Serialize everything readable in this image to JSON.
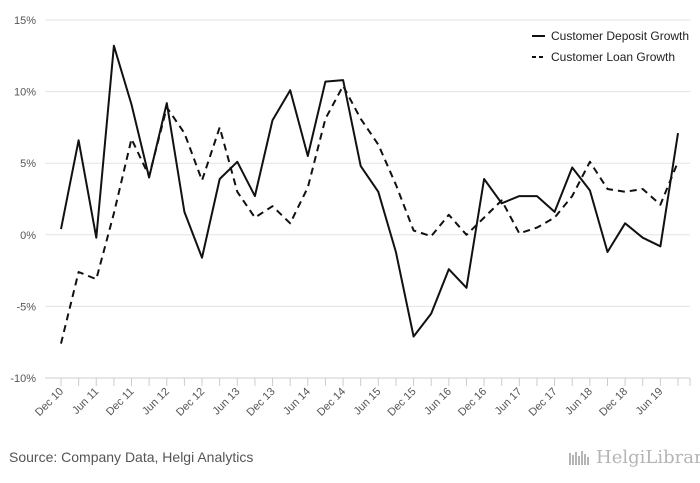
{
  "source": "Source: Company Data, Helgi Analytics",
  "logo_text": "HelgiLibrary",
  "chart_data": {
    "type": "line",
    "x": [
      "Dec 10",
      "Mar 11",
      "Jun 11",
      "Sep 11",
      "Dec 11",
      "Mar 12",
      "Jun 12",
      "Sep 12",
      "Dec 12",
      "Mar 13",
      "Jun 13",
      "Sep 13",
      "Dec 13",
      "Mar 14",
      "Jun 14",
      "Sep 14",
      "Dec 14",
      "Mar 15",
      "Jun 15",
      "Sep 15",
      "Dec 15",
      "Mar 16",
      "Jun 16",
      "Sep 16",
      "Dec 16",
      "Mar 17",
      "Jun 17",
      "Sep 17",
      "Dec 17",
      "Mar 18",
      "Jun 18",
      "Sep 18",
      "Dec 18",
      "Mar 19",
      "Jun 19",
      "Sep 19"
    ],
    "tick_labels": [
      "Dec 10",
      "Jun 11",
      "Dec 11",
      "Jun 12",
      "Dec 12",
      "Jun 13",
      "Dec 13",
      "Jun 14",
      "Dec 14",
      "Jun 15",
      "Dec 15",
      "Jun 16",
      "Dec 16",
      "Jun 17",
      "Dec 17",
      "Jun 18",
      "Dec 18",
      "Jun 19"
    ],
    "series": [
      {
        "name": "Customer Deposit Growth",
        "style": "solid",
        "color": "#111111",
        "values": [
          0.4,
          6.6,
          -0.2,
          13.2,
          9.1,
          4.0,
          9.2,
          1.6,
          -1.6,
          3.9,
          5.1,
          2.7,
          8.0,
          10.1,
          5.5,
          10.7,
          10.8,
          4.8,
          3.0,
          -1.2,
          -7.1,
          -5.5,
          -2.4,
          -3.7,
          3.9,
          2.2,
          2.7,
          2.7,
          1.6,
          4.7,
          3.1,
          -1.2,
          0.8,
          -0.2,
          -0.8,
          7.1
        ]
      },
      {
        "name": "Customer Loan Growth",
        "style": "dashed",
        "color": "#111111",
        "values": [
          -7.6,
          -2.6,
          -3.1,
          1.5,
          6.7,
          4.1,
          8.9,
          7.1,
          3.8,
          7.5,
          3.0,
          1.2,
          2.0,
          0.8,
          3.3,
          8.1,
          10.4,
          8.1,
          6.3,
          3.5,
          0.3,
          -0.1,
          1.4,
          0.0,
          1.2,
          2.4,
          0.1,
          0.5,
          1.2,
          2.7,
          5.1,
          3.2,
          3.0,
          3.2,
          2.1,
          5.1
        ]
      }
    ],
    "y_ticks": [
      "15%",
      "10%",
      "5%",
      "0%",
      "-5%",
      "-10%"
    ],
    "ylim": [
      -10,
      15
    ],
    "grid": true,
    "legend": "top-right"
  }
}
